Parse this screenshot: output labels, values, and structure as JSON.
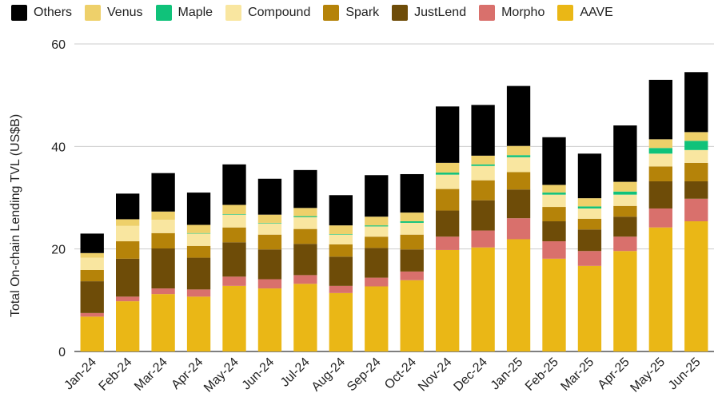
{
  "chart_data": {
    "type": "bar",
    "stacked": true,
    "title": "",
    "xlabel": "",
    "ylabel": "Total On-chain Lending TVL (US$B)",
    "ylim": [
      0,
      60
    ],
    "yticks": [
      0,
      20,
      40,
      60
    ],
    "grid": true,
    "legend_position": "top",
    "categories": [
      "Jan-24",
      "Feb-24",
      "Mar-24",
      "Apr-24",
      "May-24",
      "Jun-24",
      "Jul-24",
      "Aug-24",
      "Sep-24",
      "Oct-24",
      "Nov-24",
      "Dec-24",
      "Jan-25",
      "Feb-25",
      "Mar-25",
      "Apr-25",
      "May-25",
      "Jun-25"
    ],
    "series": [
      {
        "name": "AAVE",
        "color": "#EAB716",
        "values": [
          6.8,
          9.8,
          11.2,
          10.7,
          12.8,
          12.3,
          13.2,
          11.4,
          12.7,
          13.9,
          19.8,
          20.3,
          21.9,
          18.1,
          16.7,
          19.6,
          24.2,
          25.4
        ]
      },
      {
        "name": "Morpho",
        "color": "#D9706C",
        "values": [
          0.7,
          0.9,
          1.1,
          1.4,
          1.8,
          1.8,
          1.7,
          1.4,
          1.7,
          1.7,
          2.6,
          3.3,
          4.1,
          3.4,
          2.9,
          2.8,
          3.7,
          4.4
        ]
      },
      {
        "name": "JustLend",
        "color": "#6E4C08",
        "values": [
          6.2,
          7.4,
          7.8,
          6.2,
          6.7,
          5.8,
          6.1,
          5.7,
          5.8,
          4.3,
          5.1,
          5.9,
          5.6,
          3.9,
          4.2,
          3.9,
          5.3,
          3.4
        ]
      },
      {
        "name": "Spark",
        "color": "#B58309",
        "values": [
          2.2,
          3.4,
          3.0,
          2.3,
          2.9,
          2.9,
          2.9,
          2.4,
          2.2,
          2.9,
          4.2,
          3.9,
          3.4,
          2.8,
          2.1,
          2.1,
          2.9,
          3.6
        ]
      },
      {
        "name": "Compound",
        "color": "#F9E6A0",
        "values": [
          2.4,
          3.0,
          2.6,
          2.4,
          2.5,
          2.2,
          2.3,
          1.9,
          2.0,
          2.3,
          2.8,
          2.8,
          2.9,
          2.4,
          2.0,
          2.2,
          2.5,
          2.5
        ]
      },
      {
        "name": "Maple",
        "color": "#10C27A",
        "values": [
          0.0,
          0.0,
          0.0,
          0.1,
          0.1,
          0.1,
          0.2,
          0.1,
          0.2,
          0.3,
          0.4,
          0.3,
          0.4,
          0.4,
          0.4,
          0.6,
          1.1,
          1.8
        ]
      },
      {
        "name": "Venus",
        "color": "#EED06A",
        "values": [
          0.9,
          1.3,
          1.6,
          1.6,
          1.8,
          1.6,
          1.6,
          1.7,
          1.7,
          1.7,
          1.9,
          1.7,
          1.8,
          1.5,
          1.6,
          1.9,
          1.7,
          1.7
        ]
      },
      {
        "name": "Others",
        "color": "#000000",
        "values": [
          3.8,
          5.0,
          7.5,
          6.3,
          7.9,
          7.0,
          7.4,
          5.9,
          8.1,
          7.5,
          11.0,
          9.9,
          11.7,
          9.3,
          8.7,
          11.0,
          11.6,
          11.7
        ]
      }
    ],
    "legend_order": [
      "Others",
      "Venus",
      "Maple",
      "Compound",
      "Spark",
      "JustLend",
      "Morpho",
      "AAVE"
    ]
  }
}
